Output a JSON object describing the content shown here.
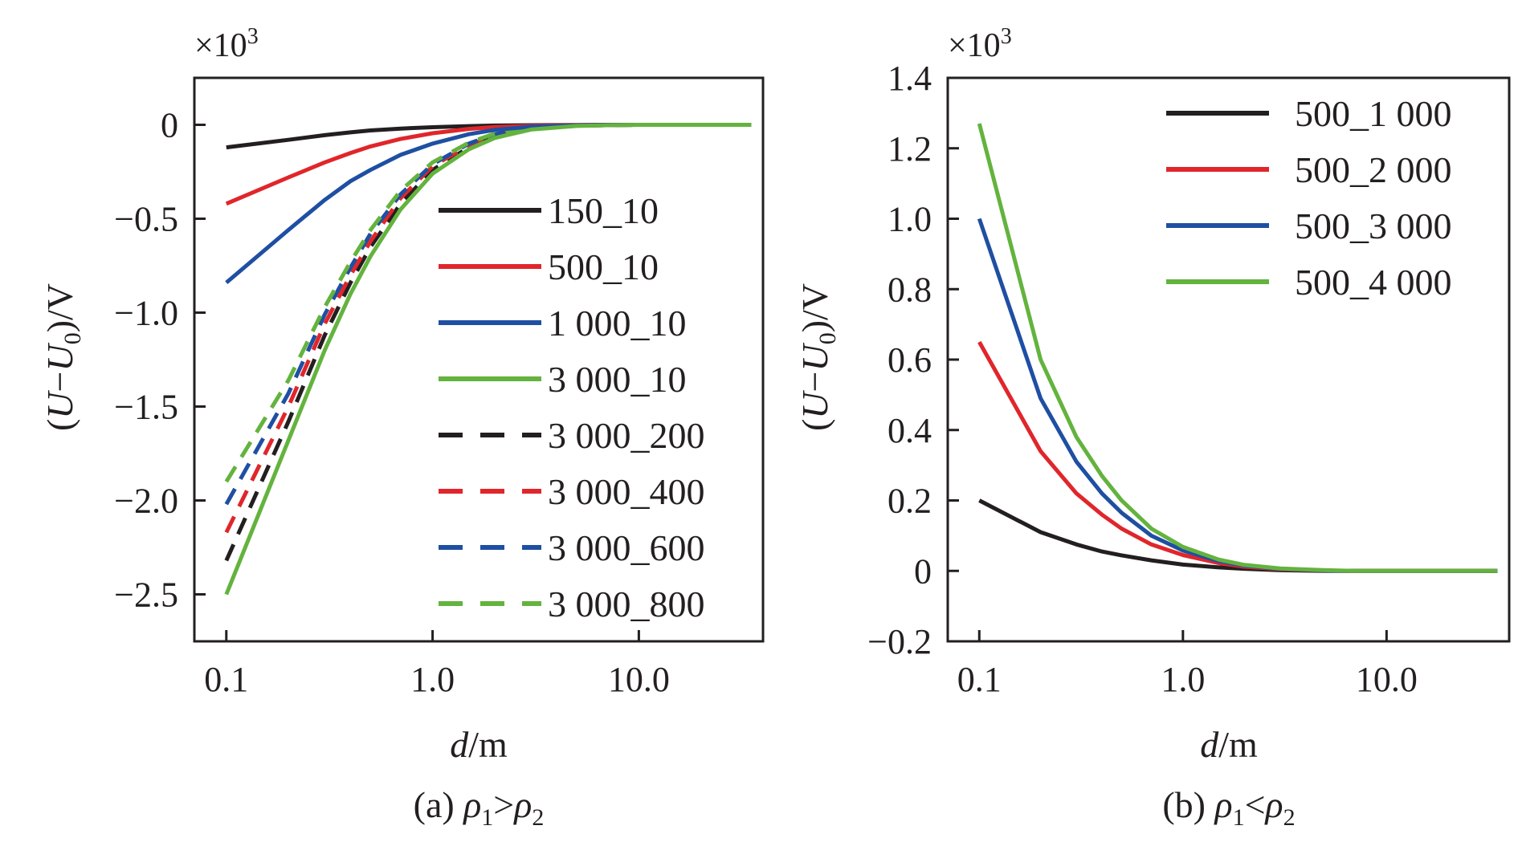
{
  "figure": {
    "caption_a_prefix": "(a) ",
    "caption_b_prefix": "(b) ",
    "rho": "ρ",
    "sub1": "1",
    "sub2": "2",
    "gt": ">",
    "lt": "<"
  },
  "chart_data": [
    {
      "type": "line",
      "panel": "a",
      "multiplier": "×10",
      "multiplier_exp": "3",
      "ylabel_parts": [
        "(",
        "U",
        "−",
        "U",
        "0",
        ")/V"
      ],
      "xlabel_parts": [
        "d",
        "/m"
      ],
      "xscale": "log",
      "xlim": [
        0.07,
        40
      ],
      "ylim": [
        -2.75,
        0.25
      ],
      "xticks": [
        0.1,
        1.0,
        10.0
      ],
      "xtick_labels": [
        "0.1",
        "1.0",
        "10.0"
      ],
      "yticks": [
        0,
        -0.5,
        -1.0,
        -1.5,
        -2.0,
        -2.5
      ],
      "ytick_labels": [
        "0",
        "−0.5",
        "−1.0",
        "−1.5",
        "−2.0",
        "−2.5"
      ],
      "legend_position": "right",
      "x": [
        0.1,
        0.2,
        0.3,
        0.4,
        0.5,
        0.7,
        1.0,
        1.5,
        2.0,
        3.0,
        5.0,
        7.0,
        10.0,
        20.0,
        35.0
      ],
      "series": [
        {
          "name": "150_10",
          "color": "#231f20",
          "dash": "solid",
          "values": [
            -0.12,
            -0.08,
            -0.055,
            -0.04,
            -0.03,
            -0.02,
            -0.013,
            -0.007,
            -0.004,
            -0.002,
            -0.001,
            0,
            0,
            0,
            0
          ]
        },
        {
          "name": "500_10",
          "color": "#e0262b",
          "dash": "solid",
          "values": [
            -0.42,
            -0.28,
            -0.2,
            -0.15,
            -0.115,
            -0.075,
            -0.045,
            -0.022,
            -0.012,
            -0.005,
            -0.002,
            -0.001,
            0,
            0,
            0
          ]
        },
        {
          "name": "1 000_10",
          "color": "#1f4fa3",
          "dash": "solid",
          "values": [
            -0.84,
            -0.56,
            -0.4,
            -0.3,
            -0.24,
            -0.16,
            -0.1,
            -0.05,
            -0.027,
            -0.01,
            -0.003,
            -0.001,
            0,
            0,
            0
          ]
        },
        {
          "name": "3 000_10",
          "color": "#63b33e",
          "dash": "solid",
          "values": [
            -2.5,
            -1.68,
            -1.2,
            -0.9,
            -0.7,
            -0.45,
            -0.26,
            -0.13,
            -0.07,
            -0.025,
            -0.006,
            -0.002,
            0,
            0,
            0
          ]
        },
        {
          "name": "3 000_200",
          "color": "#231f20",
          "dash": "dashed",
          "values": [
            -2.32,
            -1.58,
            -1.12,
            -0.84,
            -0.65,
            -0.42,
            -0.24,
            -0.12,
            -0.06,
            -0.02,
            -0.005,
            -0.002,
            0,
            0,
            0
          ]
        },
        {
          "name": "3 000_400",
          "color": "#e0262b",
          "dash": "dashed",
          "values": [
            -2.17,
            -1.5,
            -1.06,
            -0.8,
            -0.62,
            -0.39,
            -0.22,
            -0.11,
            -0.055,
            -0.018,
            -0.004,
            -0.001,
            0,
            0,
            0
          ]
        },
        {
          "name": "3 000_600",
          "color": "#1f4fa3",
          "dash": "dashed",
          "values": [
            -2.02,
            -1.43,
            -1.01,
            -0.76,
            -0.58,
            -0.37,
            -0.21,
            -0.1,
            -0.05,
            -0.016,
            -0.004,
            -0.001,
            0,
            0,
            0
          ]
        },
        {
          "name": "3 000_800",
          "color": "#63b33e",
          "dash": "dashed",
          "values": [
            -1.9,
            -1.36,
            -0.97,
            -0.73,
            -0.56,
            -0.35,
            -0.2,
            -0.095,
            -0.047,
            -0.015,
            -0.003,
            -0.001,
            0,
            0,
            0
          ]
        }
      ]
    },
    {
      "type": "line",
      "panel": "b",
      "multiplier": "×10",
      "multiplier_exp": "3",
      "ylabel_parts": [
        "(",
        "U",
        "−",
        "U",
        "0",
        ")/V"
      ],
      "xlabel_parts": [
        "d",
        "/m"
      ],
      "xscale": "log",
      "xlim": [
        0.07,
        40
      ],
      "ylim": [
        -0.2,
        1.4
      ],
      "xticks": [
        0.1,
        1.0,
        10.0
      ],
      "xtick_labels": [
        "0.1",
        "1.0",
        "10.0"
      ],
      "yticks": [
        1.4,
        1.2,
        1.0,
        0.8,
        0.6,
        0.4,
        0.2,
        0,
        -0.2
      ],
      "ytick_labels": [
        "1.4",
        "1.2",
        "1.0",
        "0.8",
        "0.6",
        "0.4",
        "0.2",
        "0",
        "−0.2"
      ],
      "legend_position": "top-right",
      "x": [
        0.1,
        0.2,
        0.3,
        0.4,
        0.5,
        0.7,
        1.0,
        1.5,
        2.0,
        3.0,
        5.0,
        7.0,
        10.0,
        20.0,
        35.0
      ],
      "series": [
        {
          "name": "500_1 000",
          "color": "#231f20",
          "dash": "solid",
          "values": [
            0.2,
            0.11,
            0.075,
            0.055,
            0.044,
            0.03,
            0.018,
            0.01,
            0.006,
            0.002,
            0,
            0,
            0,
            0,
            0
          ]
        },
        {
          "name": "500_2 000",
          "color": "#e0262b",
          "dash": "solid",
          "values": [
            0.65,
            0.34,
            0.22,
            0.16,
            0.12,
            0.075,
            0.045,
            0.022,
            0.012,
            0.005,
            0.001,
            0,
            0,
            0,
            0
          ]
        },
        {
          "name": "500_3 000",
          "color": "#1f4fa3",
          "dash": "solid",
          "values": [
            1.0,
            0.49,
            0.31,
            0.22,
            0.165,
            0.1,
            0.058,
            0.028,
            0.015,
            0.006,
            0.001,
            0,
            0,
            0,
            0
          ]
        },
        {
          "name": "500_4 000",
          "color": "#63b33e",
          "dash": "solid",
          "values": [
            1.27,
            0.6,
            0.38,
            0.27,
            0.2,
            0.12,
            0.068,
            0.032,
            0.017,
            0.007,
            0.002,
            0,
            0,
            0,
            0
          ]
        }
      ]
    }
  ]
}
